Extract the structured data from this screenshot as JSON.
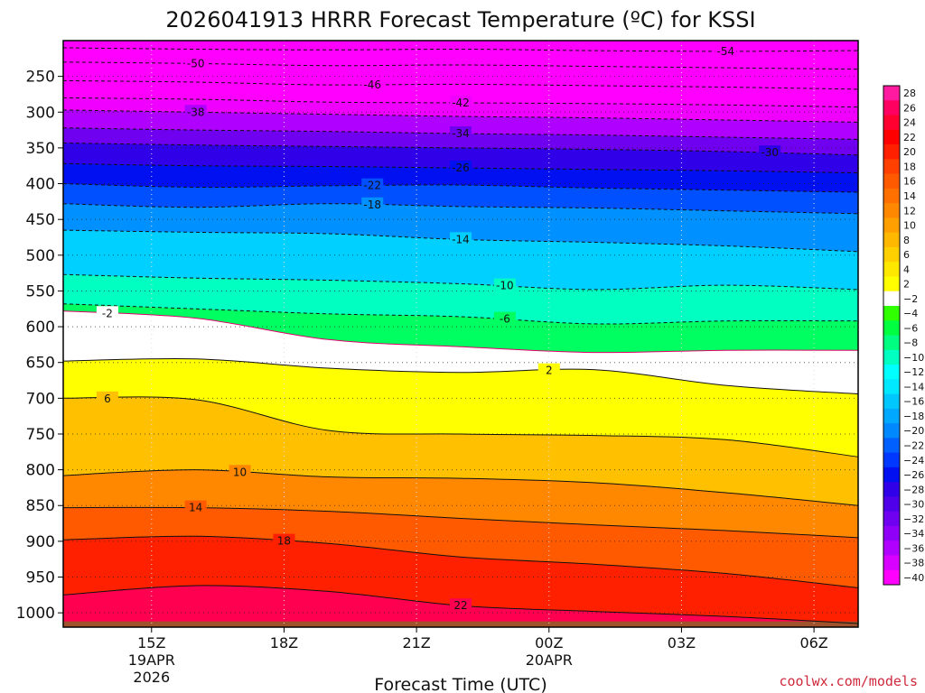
{
  "chart_data": {
    "type": "heatmap",
    "title": "2026041913 HRRR Forecast Temperature (ºC) for KSSI",
    "xlabel": "Forecast Time (UTC)",
    "ylabel": "",
    "credit": "coolwx.com/models",
    "credit_color": "#d0283c",
    "x_unit": "hours since 2026-04-19 13Z",
    "xlim": [
      13,
      31
    ],
    "x_ticks": [
      {
        "hour": 15,
        "lines": [
          "15Z",
          "19APR",
          "2026"
        ]
      },
      {
        "hour": 18,
        "lines": [
          "18Z"
        ]
      },
      {
        "hour": 21,
        "lines": [
          "21Z"
        ]
      },
      {
        "hour": 24,
        "lines": [
          "00Z",
          "20APR"
        ]
      },
      {
        "hour": 27,
        "lines": [
          "03Z"
        ]
      },
      {
        "hour": 30,
        "lines": [
          "06Z"
        ]
      }
    ],
    "y_unit": "hPa",
    "ylim": [
      1020,
      200
    ],
    "y_ticks": [
      250,
      300,
      350,
      400,
      450,
      500,
      550,
      600,
      650,
      700,
      750,
      800,
      850,
      900,
      950,
      1000
    ],
    "y_ticks_display": [
      "250",
      "300",
      "350",
      "400",
      "450",
      "500",
      "550",
      "600",
      "650",
      "700",
      "750",
      "800",
      "850",
      "900",
      "950",
      "1000"
    ],
    "grid": "dotted",
    "colorbar": {
      "position": "right",
      "labels": [
        "28",
        "26",
        "24",
        "22",
        "20",
        "18",
        "16",
        "14",
        "12",
        "10",
        "8",
        "6",
        "4",
        "2",
        "−2",
        "−4",
        "−6",
        "−8",
        "−10",
        "−12",
        "−14",
        "−16",
        "−18",
        "−20",
        "−22",
        "−24",
        "−26",
        "−28",
        "−30",
        "−32",
        "−34",
        "−36",
        "−38",
        "−40"
      ],
      "colors": [
        "#ff1aa0",
        "#ff0060",
        "#ff0030",
        "#ff0000",
        "#ff2000",
        "#ff4000",
        "#ff5a00",
        "#ff7000",
        "#ff8800",
        "#ffa000",
        "#ffb800",
        "#ffd000",
        "#ffe800",
        "#ffff00",
        "#ffffff",
        "#30ff00",
        "#00ff40",
        "#00ff80",
        "#00ffc0",
        "#00ffff",
        "#00e8ff",
        "#00c8ff",
        "#00a8ff",
        "#0088ff",
        "#0060ff",
        "#0038ff",
        "#0010f0",
        "#3000e8",
        "#5000e8",
        "#7000f0",
        "#9000f8",
        "#b000ff",
        "#d800ff",
        "#ff00ff"
      ]
    },
    "series": [
      {
        "name": "-54",
        "hours": [
          13,
          16,
          19,
          22,
          25,
          28,
          31
        ],
        "pressure": [
          210,
          212,
          213,
          212,
          214,
          215,
          214
        ],
        "label_at": 28
      },
      {
        "name": "-50",
        "hours": [
          13,
          16,
          19,
          22,
          25,
          28,
          31
        ],
        "pressure": [
          230,
          232,
          235,
          234,
          236,
          238,
          240
        ],
        "label_at": 16
      },
      {
        "name": "-46",
        "hours": [
          13,
          16,
          19,
          22,
          25,
          28,
          31
        ],
        "pressure": [
          256,
          258,
          262,
          261,
          263,
          265,
          268
        ],
        "label_at": 20
      },
      {
        "name": "-42",
        "hours": [
          13,
          16,
          19,
          22,
          25,
          28,
          31
        ],
        "pressure": [
          280,
          282,
          286,
          287,
          288,
          290,
          293
        ],
        "label_at": 22
      },
      {
        "name": "-38",
        "hours": [
          13,
          16,
          19,
          22,
          25,
          28,
          31
        ],
        "pressure": [
          297,
          300,
          303,
          306,
          308,
          311,
          314
        ],
        "label_at": 16
      },
      {
        "name": "-34",
        "hours": [
          13,
          16,
          19,
          22,
          25,
          28,
          31
        ],
        "pressure": [
          322,
          325,
          327,
          330,
          332,
          335,
          338
        ],
        "label_at": 22
      },
      {
        "name": "-30",
        "hours": [
          13,
          16,
          19,
          22,
          25,
          28,
          31
        ],
        "pressure": [
          343,
          346,
          348,
          350,
          352,
          355,
          360
        ],
        "label_at": 29
      },
      {
        "name": "-26",
        "hours": [
          13,
          16,
          19,
          22,
          25,
          28,
          31
        ],
        "pressure": [
          372,
          375,
          376,
          378,
          380,
          382,
          385
        ],
        "label_at": 22
      },
      {
        "name": "-22",
        "hours": [
          13,
          16,
          19,
          22,
          25,
          28,
          31
        ],
        "pressure": [
          400,
          405,
          403,
          402,
          406,
          409,
          412
        ],
        "label_at": 20
      },
      {
        "name": "-18",
        "hours": [
          13,
          16,
          19,
          22,
          25,
          28,
          31
        ],
        "pressure": [
          428,
          433,
          428,
          432,
          434,
          438,
          442
        ],
        "label_at": 20
      },
      {
        "name": "-14",
        "hours": [
          13,
          16,
          19,
          22,
          25,
          28,
          31
        ],
        "pressure": [
          465,
          468,
          470,
          478,
          482,
          487,
          495
        ],
        "label_at": 22
      },
      {
        "name": "-10",
        "hours": [
          13,
          16,
          19,
          22,
          25,
          28,
          31
        ],
        "pressure": [
          527,
          532,
          535,
          540,
          548,
          542,
          548
        ],
        "label_at": 23
      },
      {
        "name": "-6",
        "hours": [
          13,
          16,
          19,
          22,
          25,
          28,
          31
        ],
        "pressure": [
          568,
          575,
          582,
          586,
          596,
          592,
          592
        ],
        "label_at": 23
      },
      {
        "name": "-2",
        "hours": [
          13,
          16,
          19,
          22,
          25,
          28,
          31
        ],
        "pressure": [
          578,
          588,
          618,
          628,
          636,
          633,
          633
        ],
        "label_at": 14
      },
      {
        "name": "2",
        "hours": [
          13,
          16,
          19,
          22,
          25,
          28,
          31
        ],
        "pressure": [
          648,
          645,
          658,
          664,
          660,
          682,
          694
        ],
        "label_at": 24
      },
      {
        "name": "6",
        "hours": [
          13,
          16,
          19,
          22,
          25,
          28,
          31
        ],
        "pressure": [
          700,
          702,
          745,
          750,
          752,
          758,
          782
        ],
        "label_at": 14
      },
      {
        "name": "10",
        "hours": [
          13,
          16,
          19,
          22,
          25,
          28,
          31
        ],
        "pressure": [
          808,
          800,
          810,
          812,
          818,
          832,
          850
        ],
        "label_at": 17
      },
      {
        "name": "14",
        "hours": [
          13,
          16,
          19,
          22,
          25,
          28,
          31
        ],
        "pressure": [
          853,
          853,
          858,
          868,
          877,
          885,
          895
        ],
        "label_at": 16
      },
      {
        "name": "18",
        "hours": [
          13,
          16,
          19,
          22,
          25,
          28,
          31
        ],
        "pressure": [
          898,
          893,
          903,
          922,
          932,
          945,
          965
        ],
        "label_at": 18
      },
      {
        "name": "22",
        "hours": [
          13,
          16,
          19,
          22,
          25,
          28,
          31
        ],
        "pressure": [
          975,
          962,
          970,
          990,
          998,
          1005,
          1015
        ],
        "label_at": 22
      }
    ]
  }
}
